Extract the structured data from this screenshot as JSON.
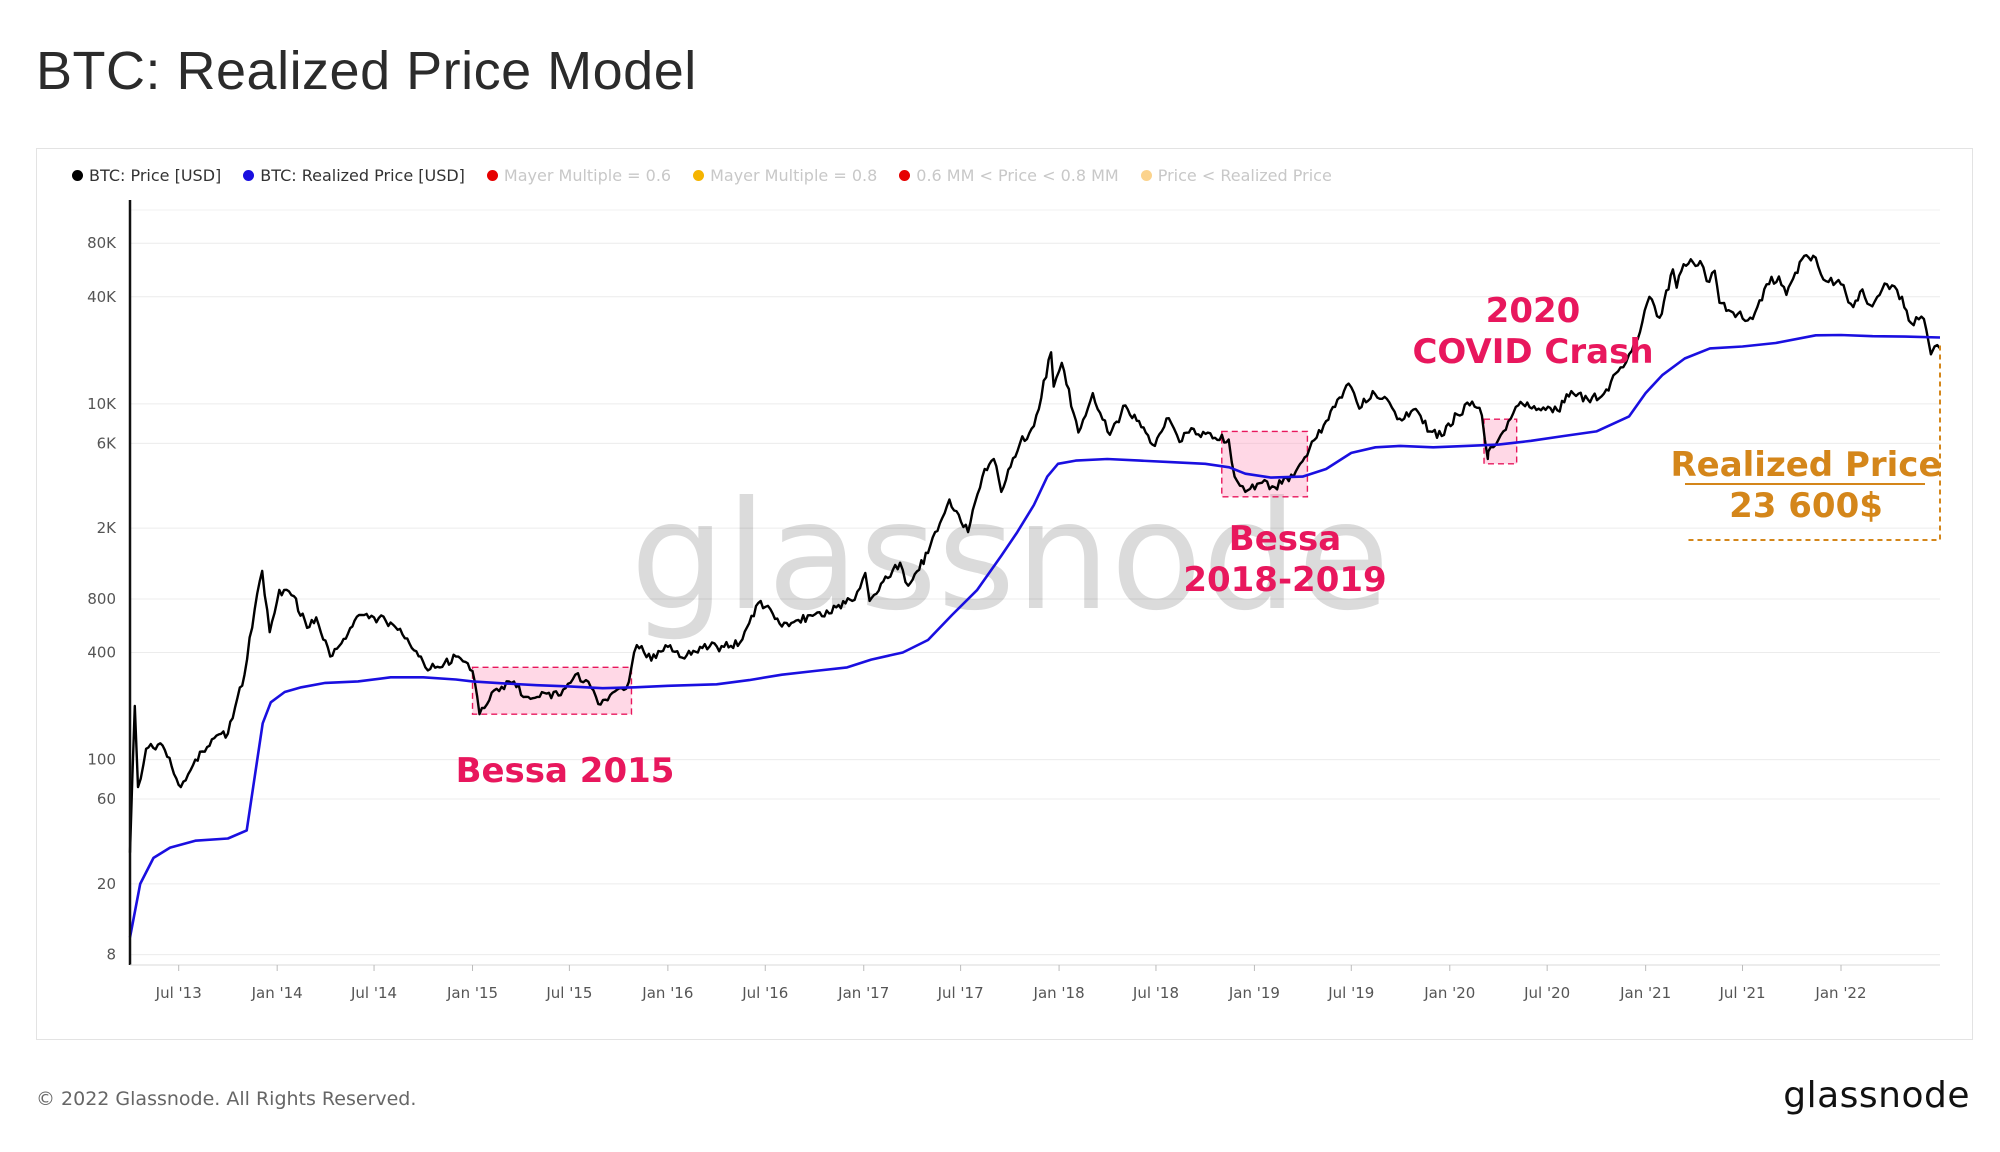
{
  "page": {
    "title": "BTC: Realized Price Model",
    "footer_copyright": "© 2022 Glassnode. All Rights Reserved.",
    "footer_logo": "glassnode",
    "watermark": "glassnode"
  },
  "legend": [
    {
      "label": "BTC: Price [USD]",
      "color": "#000000",
      "active": true
    },
    {
      "label": "BTC: Realized Price [USD]",
      "color": "#1a0fe0",
      "active": true
    },
    {
      "label": "Mayer Multiple = 0.6",
      "color": "#e60000",
      "active": false
    },
    {
      "label": "Mayer Multiple = 0.8",
      "color": "#f5b400",
      "active": false
    },
    {
      "label": "0.6 MM < Price < 0.8 MM",
      "color": "#e60000",
      "active": false
    },
    {
      "label": "Price < Realized Price",
      "color": "#fbd38d",
      "active": false
    }
  ],
  "chart_data": {
    "type": "line",
    "title": "BTC: Realized Price Model",
    "y_scale": "log",
    "ylim": [
      7,
      140000
    ],
    "xlim": [
      "2013-04-01",
      "2022-07-05"
    ],
    "y_ticks": [
      {
        "value": 8,
        "label": "8"
      },
      {
        "value": 20,
        "label": "20"
      },
      {
        "value": 60,
        "label": "60"
      },
      {
        "value": 100,
        "label": "100"
      },
      {
        "value": 400,
        "label": "400"
      },
      {
        "value": 800,
        "label": "800"
      },
      {
        "value": 2000,
        "label": "2K"
      },
      {
        "value": 6000,
        "label": "6K"
      },
      {
        "value": 10000,
        "label": "10K"
      },
      {
        "value": 40000,
        "label": "40K"
      },
      {
        "value": 80000,
        "label": "80K"
      }
    ],
    "x_ticks": [
      {
        "date": "2013-07-01",
        "label": "Jul '13"
      },
      {
        "date": "2014-01-01",
        "label": "Jan '14"
      },
      {
        "date": "2014-07-01",
        "label": "Jul '14"
      },
      {
        "date": "2015-01-01",
        "label": "Jan '15"
      },
      {
        "date": "2015-07-01",
        "label": "Jul '15"
      },
      {
        "date": "2016-01-01",
        "label": "Jan '16"
      },
      {
        "date": "2016-07-01",
        "label": "Jul '16"
      },
      {
        "date": "2017-01-01",
        "label": "Jan '17"
      },
      {
        "date": "2017-07-01",
        "label": "Jul '17"
      },
      {
        "date": "2018-01-01",
        "label": "Jan '18"
      },
      {
        "date": "2018-07-01",
        "label": "Jul '18"
      },
      {
        "date": "2019-01-01",
        "label": "Jan '19"
      },
      {
        "date": "2019-07-01",
        "label": "Jul '19"
      },
      {
        "date": "2020-01-01",
        "label": "Jan '20"
      },
      {
        "date": "2020-07-01",
        "label": "Jul '20"
      },
      {
        "date": "2021-01-01",
        "label": "Jan '21"
      },
      {
        "date": "2021-07-01",
        "label": "Jul '21"
      },
      {
        "date": "2022-01-01",
        "label": "Jan '22"
      }
    ],
    "series": [
      {
        "name": "BTC: Price [USD]",
        "color": "#000000",
        "points": [
          [
            "2013-04-01",
            30
          ],
          [
            "2013-04-10",
            200
          ],
          [
            "2013-04-16",
            70
          ],
          [
            "2013-05-01",
            115
          ],
          [
            "2013-06-01",
            120
          ],
          [
            "2013-07-05",
            70
          ],
          [
            "2013-08-01",
            100
          ],
          [
            "2013-09-01",
            130
          ],
          [
            "2013-10-01",
            140
          ],
          [
            "2013-11-01",
            300
          ],
          [
            "2013-11-20",
            700
          ],
          [
            "2013-12-04",
            1150
          ],
          [
            "2013-12-18",
            520
          ],
          [
            "2014-01-05",
            900
          ],
          [
            "2014-02-01",
            830
          ],
          [
            "2014-02-26",
            550
          ],
          [
            "2014-03-15",
            630
          ],
          [
            "2014-04-10",
            380
          ],
          [
            "2014-05-01",
            450
          ],
          [
            "2014-06-03",
            650
          ],
          [
            "2014-07-01",
            630
          ],
          [
            "2014-08-01",
            590
          ],
          [
            "2014-09-01",
            480
          ],
          [
            "2014-10-05",
            330
          ],
          [
            "2014-11-01",
            330
          ],
          [
            "2014-12-01",
            380
          ],
          [
            "2015-01-01",
            315
          ],
          [
            "2015-01-14",
            180
          ],
          [
            "2015-02-15",
            250
          ],
          [
            "2015-03-15",
            270
          ],
          [
            "2015-04-15",
            225
          ],
          [
            "2015-05-15",
            237
          ],
          [
            "2015-06-15",
            230
          ],
          [
            "2015-07-12",
            300
          ],
          [
            "2015-08-01",
            280
          ],
          [
            "2015-08-24",
            205
          ],
          [
            "2015-09-15",
            230
          ],
          [
            "2015-10-15",
            250
          ],
          [
            "2015-11-04",
            440
          ],
          [
            "2015-12-01",
            360
          ],
          [
            "2016-01-01",
            430
          ],
          [
            "2016-02-01",
            370
          ],
          [
            "2016-03-01",
            430
          ],
          [
            "2016-04-15",
            430
          ],
          [
            "2016-05-15",
            455
          ],
          [
            "2016-06-18",
            760
          ],
          [
            "2016-07-15",
            660
          ],
          [
            "2016-08-01",
            560
          ],
          [
            "2016-09-01",
            610
          ],
          [
            "2016-10-15",
            640
          ],
          [
            "2016-11-15",
            740
          ],
          [
            "2016-12-15",
            790
          ],
          [
            "2017-01-04",
            1120
          ],
          [
            "2017-01-12",
            780
          ],
          [
            "2017-02-15",
            1050
          ],
          [
            "2017-03-10",
            1280
          ],
          [
            "2017-03-25",
            950
          ],
          [
            "2017-05-01",
            1450
          ],
          [
            "2017-06-10",
            2900
          ],
          [
            "2017-07-15",
            1900
          ],
          [
            "2017-08-15",
            4300
          ],
          [
            "2017-09-01",
            4900
          ],
          [
            "2017-09-15",
            3200
          ],
          [
            "2017-10-20",
            6000
          ],
          [
            "2017-11-15",
            7500
          ],
          [
            "2017-12-17",
            19500
          ],
          [
            "2017-12-22",
            12500
          ],
          [
            "2018-01-06",
            17000
          ],
          [
            "2018-02-06",
            6900
          ],
          [
            "2018-03-05",
            11500
          ],
          [
            "2018-04-06",
            6700
          ],
          [
            "2018-05-05",
            9800
          ],
          [
            "2018-06-29",
            5800
          ],
          [
            "2018-07-25",
            8300
          ],
          [
            "2018-08-14",
            6100
          ],
          [
            "2018-09-05",
            7300
          ],
          [
            "2018-10-15",
            6400
          ],
          [
            "2018-11-14",
            6300
          ],
          [
            "2018-11-25",
            3900
          ],
          [
            "2018-12-15",
            3200
          ],
          [
            "2019-01-15",
            3600
          ],
          [
            "2019-02-08",
            3400
          ],
          [
            "2019-03-15",
            3900
          ],
          [
            "2019-04-05",
            5000
          ],
          [
            "2019-05-15",
            8000
          ],
          [
            "2019-06-26",
            13000
          ],
          [
            "2019-07-16",
            9400
          ],
          [
            "2019-08-10",
            11800
          ],
          [
            "2019-09-10",
            10200
          ],
          [
            "2019-09-25",
            8200
          ],
          [
            "2019-10-25",
            9300
          ],
          [
            "2019-11-25",
            7000
          ],
          [
            "2019-12-17",
            6600
          ],
          [
            "2020-01-15",
            8700
          ],
          [
            "2020-02-12",
            10300
          ],
          [
            "2020-03-01",
            8600
          ],
          [
            "2020-03-12",
            4900
          ],
          [
            "2020-03-13",
            5400
          ],
          [
            "2020-04-10",
            7000
          ],
          [
            "2020-05-08",
            9800
          ],
          [
            "2020-06-15",
            9400
          ],
          [
            "2020-07-20",
            9200
          ],
          [
            "2020-08-15",
            11800
          ],
          [
            "2020-09-15",
            10600
          ],
          [
            "2020-10-15",
            11400
          ],
          [
            "2020-11-15",
            16000
          ],
          [
            "2020-12-01",
            19000
          ],
          [
            "2020-12-17",
            23000
          ],
          [
            "2021-01-08",
            40000
          ],
          [
            "2021-01-27",
            30500
          ],
          [
            "2021-02-21",
            57000
          ],
          [
            "2021-02-28",
            45000
          ],
          [
            "2021-03-13",
            61000
          ],
          [
            "2021-04-13",
            63500
          ],
          [
            "2021-04-25",
            49000
          ],
          [
            "2021-05-10",
            56000
          ],
          [
            "2021-05-19",
            37000
          ],
          [
            "2021-06-22",
            32000
          ],
          [
            "2021-07-20",
            30000
          ],
          [
            "2021-08-15",
            47000
          ],
          [
            "2021-09-07",
            52000
          ],
          [
            "2021-09-21",
            41000
          ],
          [
            "2021-10-20",
            65000
          ],
          [
            "2021-11-10",
            68000
          ],
          [
            "2021-12-04",
            49000
          ],
          [
            "2022-01-01",
            47000
          ],
          [
            "2022-01-24",
            35000
          ],
          [
            "2022-02-10",
            44000
          ],
          [
            "2022-02-24",
            36000
          ],
          [
            "2022-03-28",
            47000
          ],
          [
            "2022-04-25",
            40000
          ],
          [
            "2022-05-12",
            28500
          ],
          [
            "2022-06-05",
            30000
          ],
          [
            "2022-06-18",
            19000
          ],
          [
            "2022-06-25",
            21000
          ],
          [
            "2022-07-05",
            20500
          ]
        ]
      },
      {
        "name": "BTC: Realized Price [USD]",
        "color": "#1a0fe0",
        "points": [
          [
            "2013-04-01",
            10
          ],
          [
            "2013-04-20",
            20
          ],
          [
            "2013-05-15",
            28
          ],
          [
            "2013-06-15",
            32
          ],
          [
            "2013-08-01",
            35
          ],
          [
            "2013-10-01",
            36
          ],
          [
            "2013-11-05",
            40
          ],
          [
            "2013-11-20",
            80
          ],
          [
            "2013-12-05",
            160
          ],
          [
            "2013-12-20",
            210
          ],
          [
            "2014-01-15",
            240
          ],
          [
            "2014-02-15",
            255
          ],
          [
            "2014-04-01",
            270
          ],
          [
            "2014-06-01",
            275
          ],
          [
            "2014-08-01",
            290
          ],
          [
            "2014-10-01",
            290
          ],
          [
            "2014-12-01",
            282
          ],
          [
            "2015-01-01",
            275
          ],
          [
            "2015-03-01",
            268
          ],
          [
            "2015-05-01",
            262
          ],
          [
            "2015-07-01",
            258
          ],
          [
            "2015-09-01",
            252
          ],
          [
            "2015-11-01",
            255
          ],
          [
            "2016-01-01",
            260
          ],
          [
            "2016-04-01",
            265
          ],
          [
            "2016-06-01",
            280
          ],
          [
            "2016-08-01",
            300
          ],
          [
            "2016-10-01",
            315
          ],
          [
            "2016-12-01",
            330
          ],
          [
            "2017-01-15",
            365
          ],
          [
            "2017-03-15",
            400
          ],
          [
            "2017-05-01",
            470
          ],
          [
            "2017-06-15",
            650
          ],
          [
            "2017-08-01",
            900
          ],
          [
            "2017-09-15",
            1400
          ],
          [
            "2017-10-15",
            1900
          ],
          [
            "2017-11-15",
            2700
          ],
          [
            "2017-12-10",
            3900
          ],
          [
            "2017-12-30",
            4600
          ],
          [
            "2018-02-01",
            4800
          ],
          [
            "2018-04-01",
            4900
          ],
          [
            "2018-06-01",
            4800
          ],
          [
            "2018-08-01",
            4700
          ],
          [
            "2018-10-01",
            4600
          ],
          [
            "2018-11-15",
            4400
          ],
          [
            "2018-12-15",
            4050
          ],
          [
            "2019-02-01",
            3850
          ],
          [
            "2019-04-01",
            3900
          ],
          [
            "2019-05-15",
            4300
          ],
          [
            "2019-07-01",
            5300
          ],
          [
            "2019-08-15",
            5700
          ],
          [
            "2019-10-01",
            5800
          ],
          [
            "2019-12-01",
            5700
          ],
          [
            "2020-02-01",
            5800
          ],
          [
            "2020-04-01",
            5900
          ],
          [
            "2020-06-01",
            6200
          ],
          [
            "2020-08-01",
            6600
          ],
          [
            "2020-10-01",
            7000
          ],
          [
            "2020-12-01",
            8500
          ],
          [
            "2021-01-01",
            11500
          ],
          [
            "2021-02-01",
            14500
          ],
          [
            "2021-03-15",
            18000
          ],
          [
            "2021-05-01",
            20500
          ],
          [
            "2021-07-01",
            21000
          ],
          [
            "2021-09-01",
            22000
          ],
          [
            "2021-11-15",
            24300
          ],
          [
            "2022-01-01",
            24400
          ],
          [
            "2022-03-01",
            24000
          ],
          [
            "2022-05-01",
            23900
          ],
          [
            "2022-07-05",
            23600
          ]
        ]
      }
    ],
    "annotations": {
      "boxes": [
        {
          "name": "bessa-2015-box",
          "x0": "2015-01-01",
          "x1": "2015-10-25",
          "y0": 180,
          "y1": 330
        },
        {
          "name": "bessa-2018-2019-box",
          "x0": "2018-11-01",
          "x1": "2019-04-10",
          "y0": 3000,
          "y1": 7000
        },
        {
          "name": "covid-crash-box",
          "x0": "2020-03-05",
          "x1": "2020-05-05",
          "y0": 4600,
          "y1": 8200
        }
      ],
      "labels": [
        {
          "name": "bessa-2015-label",
          "lines": [
            "Bessa 2015"
          ],
          "color": "#e8175d"
        },
        {
          "name": "bessa-2018-2019-label",
          "lines": [
            "Bessa",
            "2018-2019"
          ],
          "color": "#e8175d"
        },
        {
          "name": "covid-crash-label",
          "lines": [
            "2020",
            "COVID Crash"
          ],
          "color": "#e8175d"
        },
        {
          "name": "realized-price-label",
          "lines": [
            "Realized Price",
            "23 600$"
          ],
          "color": "#d4861a"
        }
      ]
    }
  }
}
